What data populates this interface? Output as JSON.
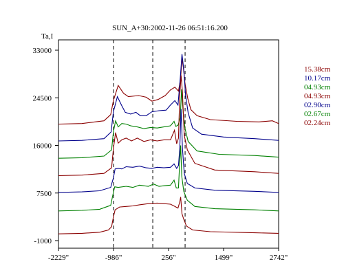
{
  "chart_data": {
    "type": "line",
    "title": "SUN_A+30:2002-11-26 06:51:16.200",
    "ylabel": "Ta,I",
    "xlabel": "",
    "xlim": [
      -2229,
      2742
    ],
    "ylim": [
      -1000,
      33000
    ],
    "grid": false,
    "legend_placement": "right",
    "y_ticks": [
      {
        "value": 33000,
        "label": "33000"
      },
      {
        "value": 24500,
        "label": "24500"
      },
      {
        "value": 16000,
        "label": "16000"
      },
      {
        "value": 7500,
        "label": "7500"
      },
      {
        "value": -1000,
        "label": "-1000"
      }
    ],
    "x_ticks": [
      {
        "value": -2229,
        "label": "-2229\""
      },
      {
        "value": -986,
        "label": "-986\""
      },
      {
        "value": 256,
        "label": "256\""
      },
      {
        "value": 1499,
        "label": "1499\""
      },
      {
        "value": 2742,
        "label": "2742\""
      }
    ],
    "vlines": [
      -986,
      -100,
      630
    ],
    "series": [
      {
        "name": "15.38cm",
        "color": "#8b0000",
        "points": [
          [
            -2229,
            19800
          ],
          [
            -1700,
            19900
          ],
          [
            -1200,
            20400
          ],
          [
            -1050,
            21500
          ],
          [
            -990,
            24000
          ],
          [
            -880,
            26700
          ],
          [
            -760,
            25300
          ],
          [
            -650,
            24700
          ],
          [
            -420,
            24900
          ],
          [
            -250,
            24600
          ],
          [
            -120,
            23900
          ],
          [
            20,
            24200
          ],
          [
            180,
            24900
          ],
          [
            300,
            25900
          ],
          [
            400,
            26400
          ],
          [
            480,
            25700
          ],
          [
            530,
            28000
          ],
          [
            560,
            31600
          ],
          [
            590,
            29900
          ],
          [
            630,
            27000
          ],
          [
            690,
            24400
          ],
          [
            760,
            22400
          ],
          [
            900,
            21300
          ],
          [
            1200,
            20600
          ],
          [
            1800,
            20300
          ],
          [
            2300,
            20200
          ],
          [
            2600,
            20400
          ],
          [
            2742,
            19900
          ]
        ]
      },
      {
        "name": "10.17cm",
        "color": "#00008b",
        "points": [
          [
            -2229,
            16800
          ],
          [
            -1700,
            16900
          ],
          [
            -1200,
            17200
          ],
          [
            -1040,
            18400
          ],
          [
            -990,
            22000
          ],
          [
            -900,
            24700
          ],
          [
            -800,
            23100
          ],
          [
            -720,
            21900
          ],
          [
            -600,
            21600
          ],
          [
            -480,
            21900
          ],
          [
            -380,
            21300
          ],
          [
            -250,
            21300
          ],
          [
            -120,
            22000
          ],
          [
            40,
            22200
          ],
          [
            200,
            22300
          ],
          [
            300,
            23200
          ],
          [
            400,
            24000
          ],
          [
            470,
            23200
          ],
          [
            520,
            28000
          ],
          [
            560,
            32300
          ],
          [
            600,
            29600
          ],
          [
            640,
            25000
          ],
          [
            700,
            21800
          ],
          [
            800,
            19100
          ],
          [
            1000,
            18000
          ],
          [
            1500,
            17500
          ],
          [
            2200,
            17200
          ],
          [
            2742,
            16900
          ]
        ]
      },
      {
        "name": "04.93cm",
        "color": "#008000",
        "points": [
          [
            -2229,
            13700
          ],
          [
            -1700,
            13800
          ],
          [
            -1200,
            14100
          ],
          [
            -1030,
            15200
          ],
          [
            -990,
            18400
          ],
          [
            -940,
            20400
          ],
          [
            -880,
            19300
          ],
          [
            -800,
            19900
          ],
          [
            -700,
            19800
          ],
          [
            -600,
            19500
          ],
          [
            -450,
            19300
          ],
          [
            -300,
            19000
          ],
          [
            -150,
            19200
          ],
          [
            0,
            19100
          ],
          [
            150,
            19300
          ],
          [
            300,
            19500
          ],
          [
            380,
            20300
          ],
          [
            420,
            19400
          ],
          [
            470,
            19600
          ],
          [
            520,
            20900
          ],
          [
            550,
            26000
          ],
          [
            590,
            21500
          ],
          [
            630,
            19000
          ],
          [
            700,
            16700
          ],
          [
            900,
            15000
          ],
          [
            1400,
            14400
          ],
          [
            2200,
            14200
          ],
          [
            2742,
            13900
          ]
        ]
      },
      {
        "name": "04.93cm",
        "color": "#8b0000",
        "points": [
          [
            -2229,
            10600
          ],
          [
            -1700,
            10700
          ],
          [
            -1200,
            11000
          ],
          [
            -1030,
            12000
          ],
          [
            -990,
            15400
          ],
          [
            -940,
            18300
          ],
          [
            -880,
            16400
          ],
          [
            -800,
            17000
          ],
          [
            -700,
            17300
          ],
          [
            -580,
            16800
          ],
          [
            -450,
            17300
          ],
          [
            -300,
            16700
          ],
          [
            -150,
            17000
          ],
          [
            0,
            16800
          ],
          [
            150,
            17000
          ],
          [
            300,
            17000
          ],
          [
            390,
            18700
          ],
          [
            440,
            16300
          ],
          [
            480,
            17300
          ],
          [
            510,
            25000
          ],
          [
            540,
            28500
          ],
          [
            570,
            25500
          ],
          [
            610,
            17800
          ],
          [
            680,
            15200
          ],
          [
            850,
            12800
          ],
          [
            1300,
            11600
          ],
          [
            2200,
            11300
          ],
          [
            2742,
            11000
          ]
        ]
      },
      {
        "name": "02.90cm",
        "color": "#00008b",
        "points": [
          [
            -2229,
            7600
          ],
          [
            -1700,
            7700
          ],
          [
            -1300,
            7900
          ],
          [
            -1050,
            8500
          ],
          [
            -990,
            10200
          ],
          [
            -950,
            11800
          ],
          [
            -880,
            11900
          ],
          [
            -800,
            11800
          ],
          [
            -700,
            12200
          ],
          [
            -550,
            12100
          ],
          [
            -400,
            12300
          ],
          [
            -250,
            12000
          ],
          [
            -120,
            11900
          ],
          [
            0,
            12100
          ],
          [
            150,
            12000
          ],
          [
            300,
            12100
          ],
          [
            380,
            12700
          ],
          [
            440,
            11900
          ],
          [
            480,
            12400
          ],
          [
            510,
            15500
          ],
          [
            540,
            22500
          ],
          [
            570,
            15500
          ],
          [
            610,
            11000
          ],
          [
            680,
            9200
          ],
          [
            850,
            8400
          ],
          [
            1300,
            8000
          ],
          [
            2200,
            7800
          ],
          [
            2742,
            7600
          ]
        ]
      },
      {
        "name": "02.67cm",
        "color": "#008000",
        "points": [
          [
            -2229,
            4300
          ],
          [
            -1700,
            4400
          ],
          [
            -1300,
            4600
          ],
          [
            -1050,
            5300
          ],
          [
            -1000,
            7200
          ],
          [
            -960,
            8600
          ],
          [
            -880,
            8500
          ],
          [
            -700,
            8700
          ],
          [
            -550,
            8500
          ],
          [
            -400,
            8900
          ],
          [
            -200,
            8700
          ],
          [
            -80,
            9100
          ],
          [
            40,
            8700
          ],
          [
            150,
            8800
          ],
          [
            300,
            8900
          ],
          [
            380,
            9800
          ],
          [
            430,
            8400
          ],
          [
            480,
            8400
          ],
          [
            505,
            12500
          ],
          [
            530,
            16000
          ],
          [
            555,
            10500
          ],
          [
            600,
            7800
          ],
          [
            680,
            6200
          ],
          [
            850,
            5100
          ],
          [
            1300,
            4700
          ],
          [
            2200,
            4500
          ],
          [
            2742,
            4300
          ]
        ]
      },
      {
        "name": "02.24cm",
        "color": "#8b0000",
        "points": [
          [
            -2229,
            200
          ],
          [
            -1700,
            300
          ],
          [
            -1300,
            500
          ],
          [
            -1100,
            900
          ],
          [
            -1030,
            1500
          ],
          [
            -990,
            3200
          ],
          [
            -950,
            4500
          ],
          [
            -850,
            5000
          ],
          [
            -700,
            5100
          ],
          [
            -550,
            5200
          ],
          [
            -400,
            5400
          ],
          [
            -200,
            5600
          ],
          [
            0,
            5700
          ],
          [
            150,
            5600
          ],
          [
            300,
            5500
          ],
          [
            400,
            5100
          ],
          [
            470,
            4800
          ],
          [
            510,
            5900
          ],
          [
            530,
            6800
          ],
          [
            560,
            3800
          ],
          [
            600,
            2800
          ],
          [
            660,
            1600
          ],
          [
            800,
            900
          ],
          [
            1200,
            600
          ],
          [
            2200,
            400
          ],
          [
            2742,
            300
          ]
        ]
      }
    ]
  }
}
